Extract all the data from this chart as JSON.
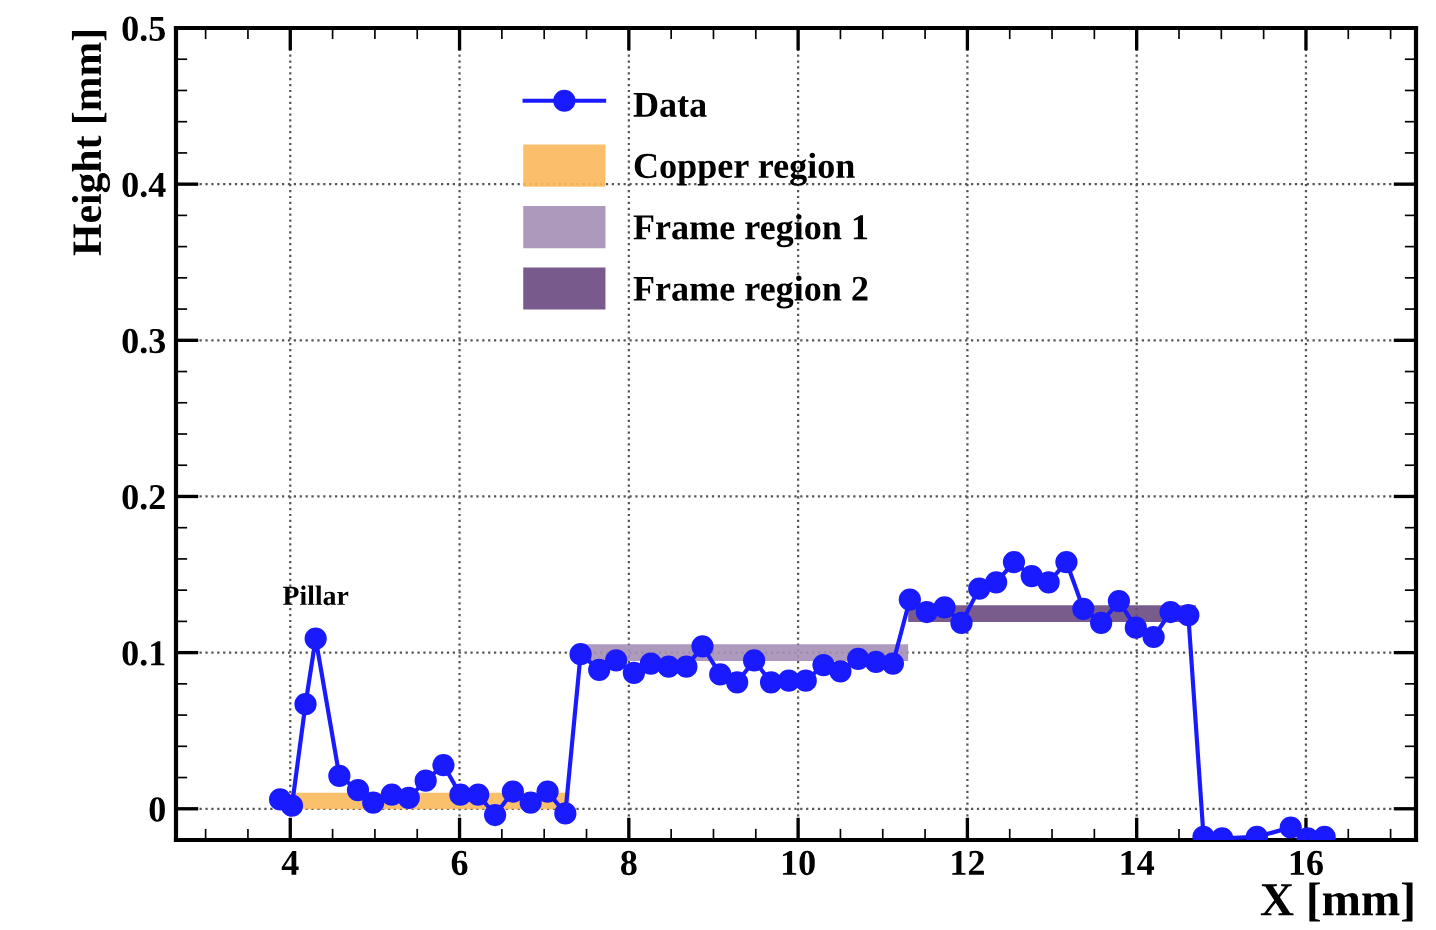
{
  "chart_data": {
    "type": "line",
    "xlabel": "X [mm]",
    "ylabel": "Height [mm]",
    "xlim": [
      2.65,
      17.3
    ],
    "ylim": [
      -0.02,
      0.5
    ],
    "xticks": [
      4,
      6,
      8,
      10,
      12,
      14,
      16
    ],
    "yticks": [
      0,
      0.1,
      0.2,
      0.3,
      0.4,
      0.5
    ],
    "grid": true,
    "legend": "top",
    "marker": "circle",
    "line_style": "solid",
    "annotations": [
      {
        "text": "Pillar",
        "x": 4.3,
        "y": 0.109
      }
    ],
    "series": [
      {
        "name": "Copper region",
        "type": "line",
        "marker": "none",
        "color": "#fbb95c",
        "x": [
          4.0,
          7.3
        ],
        "values": [
          0.005,
          0.005
        ]
      },
      {
        "name": "Frame region 1",
        "type": "line",
        "marker": "none",
        "color": "#a58fb5",
        "x": [
          7.4,
          11.3
        ],
        "values": [
          0.1,
          0.1
        ]
      },
      {
        "name": "Frame region 2",
        "type": "line",
        "marker": "none",
        "color": "#6a4a80",
        "x": [
          11.3,
          14.7
        ],
        "values": [
          0.125,
          0.125
        ]
      },
      {
        "name": "Data",
        "color": "#1a1aff",
        "x": [
          3.88,
          4.02,
          4.18,
          4.3,
          4.58,
          4.8,
          4.98,
          5.2,
          5.4,
          5.6,
          5.81,
          6.01,
          6.22,
          6.42,
          6.63,
          6.84,
          7.04,
          7.25,
          7.43,
          7.65,
          7.85,
          8.06,
          8.26,
          8.47,
          8.68,
          8.87,
          9.08,
          9.28,
          9.48,
          9.68,
          9.89,
          10.09,
          10.3,
          10.5,
          10.71,
          10.92,
          11.12,
          11.32,
          11.52,
          11.73,
          11.93,
          12.14,
          12.34,
          12.55,
          12.76,
          12.96,
          13.17,
          13.37,
          13.58,
          13.79,
          13.99,
          14.2,
          14.4,
          14.61,
          14.79,
          15.01,
          15.42,
          15.82,
          16.02,
          16.22
        ],
        "values": [
          0.006,
          0.002,
          0.067,
          0.109,
          0.021,
          0.012,
          0.004,
          0.009,
          0.007,
          0.018,
          0.028,
          0.009,
          0.009,
          -0.004,
          0.011,
          0.004,
          0.011,
          -0.003,
          0.099,
          0.089,
          0.095,
          0.087,
          0.093,
          0.091,
          0.091,
          0.104,
          0.086,
          0.081,
          0.095,
          0.081,
          0.082,
          0.082,
          0.092,
          0.088,
          0.096,
          0.094,
          0.093,
          0.134,
          0.126,
          0.129,
          0.119,
          0.141,
          0.145,
          0.158,
          0.149,
          0.145,
          0.158,
          0.128,
          0.119,
          0.133,
          0.116,
          0.11,
          0.126,
          0.124,
          -0.018,
          -0.019,
          -0.018,
          -0.012,
          -0.019,
          -0.018
        ]
      }
    ]
  }
}
